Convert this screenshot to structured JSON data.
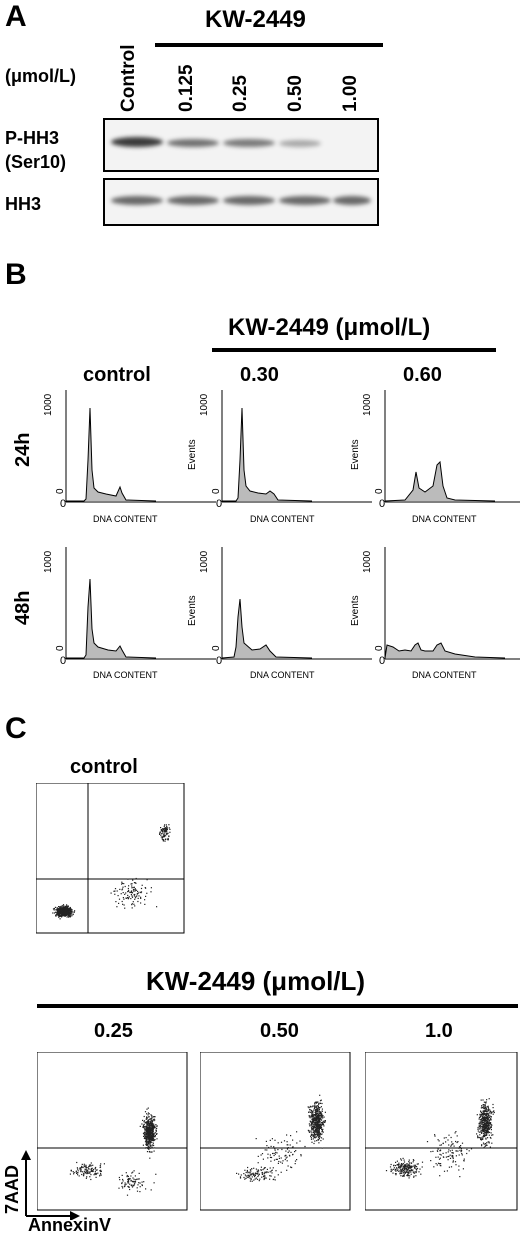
{
  "panelA": {
    "letter": "A",
    "drug": "KW-2449",
    "unit": "(μmol/L)",
    "lanes": [
      "Control",
      "0.125",
      "0.25",
      "0.50",
      "1.00"
    ],
    "row1_label_line1": "P-HH3",
    "row1_label_line2": "(Ser10)",
    "row2_label": "HH3",
    "phh3_intensity": [
      1.0,
      0.7,
      0.65,
      0.4,
      0.0
    ],
    "hh3_intensity": [
      0.75,
      0.75,
      0.75,
      0.75,
      0.75
    ]
  },
  "panelB": {
    "letter": "B",
    "drug_header": "KW-2449 (μmol/L)",
    "col_labels": [
      "control",
      "0.30",
      "0.60"
    ],
    "row_labels": [
      "24h",
      "48h"
    ],
    "y_tick_top": "1000",
    "y_tick_bottom": "0",
    "x_tick": "0",
    "xlabel": "DNA CONTENT",
    "ylabel": "Events"
  },
  "panelC": {
    "letter": "C",
    "control_label": "control",
    "drug_header": "KW-2449 (μmol/L)",
    "dose_labels": [
      "0.25",
      "0.50",
      "1.0"
    ],
    "ylabel": "7AAD",
    "xlabel": "AnnexinV"
  }
}
